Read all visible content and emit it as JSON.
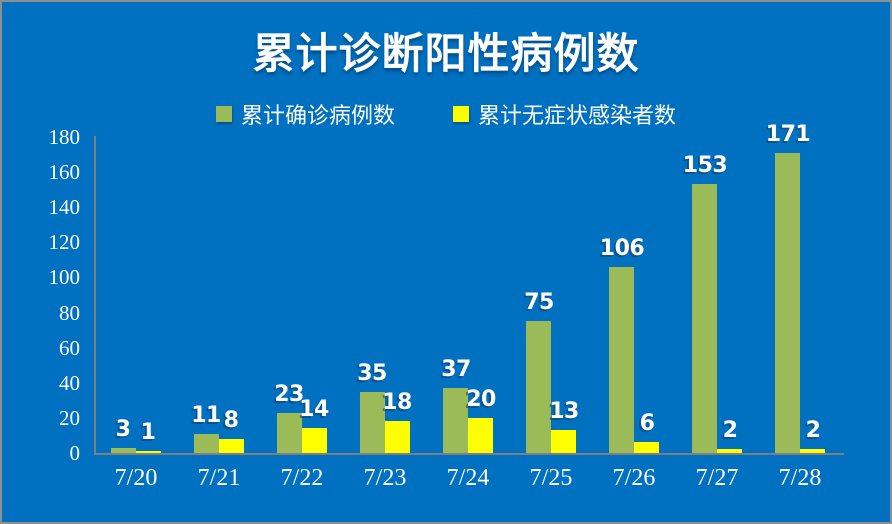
{
  "title": "累计诊断阳性病例数",
  "colors": {
    "background": "#0070C0",
    "frame_border": "#8F8F8F",
    "axis_line": "#7F7F7F",
    "text": "#FFFFFF",
    "confirmed": "#9BBB59",
    "asymptomatic": "#FFFF00"
  },
  "legend": {
    "items": [
      {
        "label": "累计确诊病例数",
        "color": "#9BBB59"
      },
      {
        "label": "累计无症状感染者数",
        "color": "#FFFF00"
      }
    ]
  },
  "chart_data": {
    "type": "bar",
    "title": "累计诊断阳性病例数",
    "categories": [
      "7/20",
      "7/21",
      "7/22",
      "7/23",
      "7/24",
      "7/25",
      "7/26",
      "7/27",
      "7/28"
    ],
    "series": [
      {
        "name": "累计确诊病例数",
        "color": "#9BBB59",
        "values": [
          3,
          11,
          23,
          35,
          37,
          75,
          106,
          153,
          171
        ]
      },
      {
        "name": "累计无症状感染者数",
        "color": "#FFFF00",
        "values": [
          1,
          8,
          14,
          18,
          20,
          13,
          6,
          2,
          2
        ]
      }
    ],
    "xlabel": "",
    "ylabel": "",
    "ylim": [
      0,
      180
    ],
    "yticks": [
      0,
      20,
      40,
      60,
      80,
      100,
      120,
      140,
      160,
      180
    ],
    "grid": false,
    "legend_position": "top",
    "data_labels": true
  }
}
